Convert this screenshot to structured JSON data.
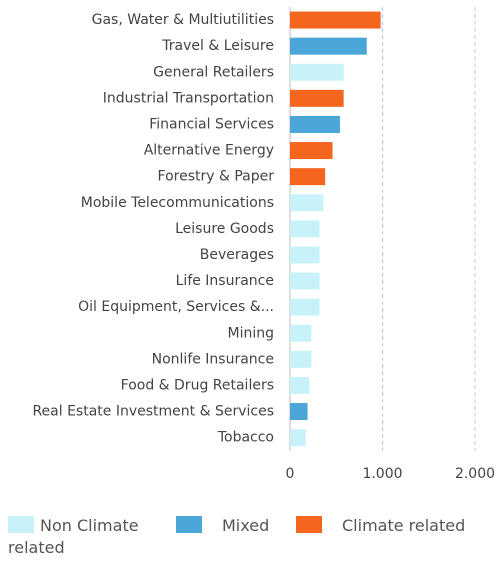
{
  "chart_data": {
    "type": "bar",
    "orientation": "horizontal",
    "categories": [
      "Gas, Water & Multiutilities",
      "Travel & Leisure",
      "General Retailers",
      "Industrial Transportation",
      "Financial Services",
      "Alternative Energy",
      "Forestry & Paper",
      "Mobile Telecommunications",
      "Leisure Goods",
      "Beverages",
      "Life Insurance",
      "Oil Equipment, Services &...",
      "Mining",
      "Nonlife Insurance",
      "Food & Drug Retailers",
      "Real Estate Investment & Services",
      "Tobacco"
    ],
    "series": [
      {
        "name": "Non Climate related",
        "color": "#c8f2fa",
        "values": [
          null,
          null,
          580,
          null,
          null,
          null,
          null,
          360,
          320,
          320,
          320,
          320,
          230,
          230,
          210,
          null,
          170
        ]
      },
      {
        "name": "Mixed",
        "color": "#4aa6d6",
        "values": [
          null,
          830,
          null,
          null,
          540,
          null,
          null,
          null,
          null,
          null,
          null,
          null,
          null,
          null,
          null,
          190,
          null
        ]
      },
      {
        "name": "Climate related",
        "color": "#f4661e",
        "values": [
          980,
          null,
          null,
          580,
          null,
          460,
          380,
          null,
          null,
          null,
          null,
          null,
          null,
          null,
          null,
          null,
          null
        ]
      }
    ],
    "xlim": [
      0,
      2000
    ],
    "xticks": [
      0,
      {
        "value": 1000,
        "label": "1.000"
      },
      {
        "value": 2000,
        "label": "2.000"
      }
    ],
    "grid": true
  }
}
